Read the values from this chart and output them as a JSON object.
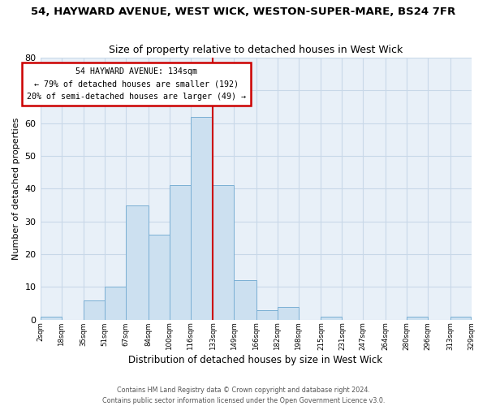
{
  "title": "54, HAYWARD AVENUE, WEST WICK, WESTON-SUPER-MARE, BS24 7FR",
  "subtitle": "Size of property relative to detached houses in West Wick",
  "xlabel": "Distribution of detached houses by size in West Wick",
  "ylabel": "Number of detached properties",
  "bar_color": "#cce0f0",
  "bar_edge_color": "#7aafd4",
  "grid_color": "#c8d8e8",
  "bg_color": "#e8f0f8",
  "fig_bg_color": "#ffffff",
  "bin_edges": [
    2,
    18,
    35,
    51,
    67,
    84,
    100,
    116,
    133,
    149,
    166,
    182,
    198,
    215,
    231,
    247,
    264,
    280,
    296,
    313,
    329
  ],
  "bin_labels": [
    "2sqm",
    "18sqm",
    "35sqm",
    "51sqm",
    "67sqm",
    "84sqm",
    "100sqm",
    "116sqm",
    "133sqm",
    "149sqm",
    "166sqm",
    "182sqm",
    "198sqm",
    "215sqm",
    "231sqm",
    "247sqm",
    "264sqm",
    "280sqm",
    "296sqm",
    "313sqm",
    "329sqm"
  ],
  "counts": [
    1,
    0,
    6,
    10,
    35,
    26,
    41,
    62,
    41,
    12,
    3,
    4,
    0,
    1,
    0,
    0,
    0,
    1,
    0,
    1
  ],
  "vline_x": 133,
  "annotation_title": "54 HAYWARD AVENUE: 134sqm",
  "annotation_line1": "← 79% of detached houses are smaller (192)",
  "annotation_line2": "20% of semi-detached houses are larger (49) →",
  "annotation_box_color": "#ffffff",
  "annotation_box_edge": "#cc0000",
  "vline_color": "#cc0000",
  "ylim": [
    0,
    80
  ],
  "yticks": [
    0,
    10,
    20,
    30,
    40,
    50,
    60,
    70,
    80
  ],
  "footer_line1": "Contains HM Land Registry data © Crown copyright and database right 2024.",
  "footer_line2": "Contains public sector information licensed under the Open Government Licence v3.0."
}
